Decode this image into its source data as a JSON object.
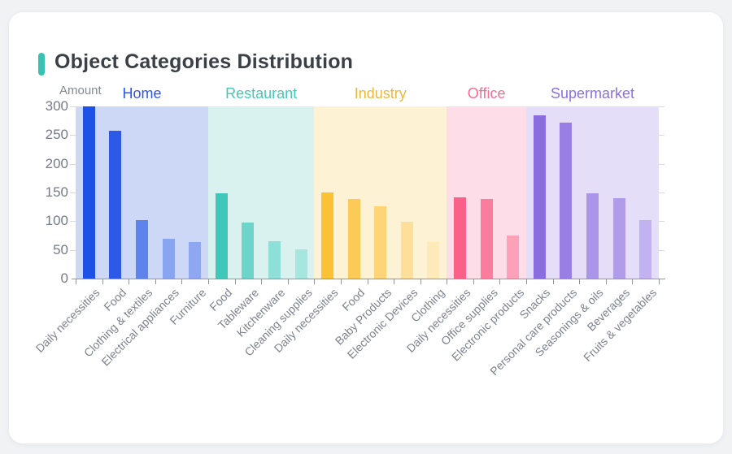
{
  "page": {
    "background_color": "#f0f2f4",
    "card_background": "#ffffff"
  },
  "header": {
    "title": "Object Categories Distribution",
    "accent_color": "#38c2b1"
  },
  "chart_data": {
    "type": "bar",
    "title": "Object Categories Distribution",
    "xlabel": "",
    "ylabel": "Amount",
    "ylim": [
      0,
      300
    ],
    "yticks": [
      0,
      50,
      100,
      150,
      200,
      250,
      300
    ],
    "grid": false,
    "legend_position": "none",
    "axis_color": "#8f95a1",
    "tick_label_color": "#7c828e",
    "groups": [
      {
        "name": "Home",
        "label_color": "#2e55e3",
        "panel_color": "#cdd8f6",
        "bars": [
          {
            "category": "Daily necessities",
            "value": 300,
            "color": "#1e52e6"
          },
          {
            "category": "Food",
            "value": 258,
            "color": "#2c5ae7"
          },
          {
            "category": "Clothing & textiles",
            "value": 102,
            "color": "#5e84eb"
          },
          {
            "category": "Electrical appliances",
            "value": 70,
            "color": "#89a4f0"
          },
          {
            "category": "Furniture",
            "value": 64,
            "color": "#8ea7f0"
          }
        ]
      },
      {
        "name": "Restaurant",
        "label_color": "#41cab7",
        "panel_color": "#d9f2ef",
        "bars": [
          {
            "category": "Food",
            "value": 148,
            "color": "#3fc8ba"
          },
          {
            "category": "Tableware",
            "value": 97,
            "color": "#6dd4c9"
          },
          {
            "category": "Kitchenware",
            "value": 65,
            "color": "#8edfd7"
          },
          {
            "category": "Cleaning supplies",
            "value": 51,
            "color": "#a5e7df"
          }
        ]
      },
      {
        "name": "Industry",
        "label_color": "#ecb741",
        "panel_color": "#fdf2d3",
        "bars": [
          {
            "category": "Daily necessities",
            "value": 150,
            "color": "#fcc235"
          },
          {
            "category": "Food",
            "value": 138,
            "color": "#fcca56"
          },
          {
            "category": "Baby Products",
            "value": 126,
            "color": "#fdd477"
          },
          {
            "category": "Electronic Devices",
            "value": 99,
            "color": "#fddf9a"
          },
          {
            "category": "Clothing",
            "value": 64,
            "color": "#fee9b8"
          }
        ]
      },
      {
        "name": "Office",
        "label_color": "#fa6b93",
        "panel_color": "#fcdde8",
        "bars": [
          {
            "category": "Daily necessities",
            "value": 142,
            "color": "#fa6189"
          },
          {
            "category": "Office supplies",
            "value": 138,
            "color": "#fa7d9d"
          },
          {
            "category": "Electronic products",
            "value": 75,
            "color": "#fca1b9"
          }
        ]
      },
      {
        "name": "Supermarket",
        "label_color": "#8c70e0",
        "panel_color": "#e4def8",
        "bars": [
          {
            "category": "Snacks",
            "value": 285,
            "color": "#8a6ee0"
          },
          {
            "category": "Personal care products",
            "value": 272,
            "color": "#997fe4"
          },
          {
            "category": "Seasonings & oils",
            "value": 148,
            "color": "#aa95e8"
          },
          {
            "category": "Beverages",
            "value": 140,
            "color": "#b09ce9"
          },
          {
            "category": "Fruits & vegetables",
            "value": 102,
            "color": "#c2b2ef"
          }
        ]
      }
    ]
  }
}
